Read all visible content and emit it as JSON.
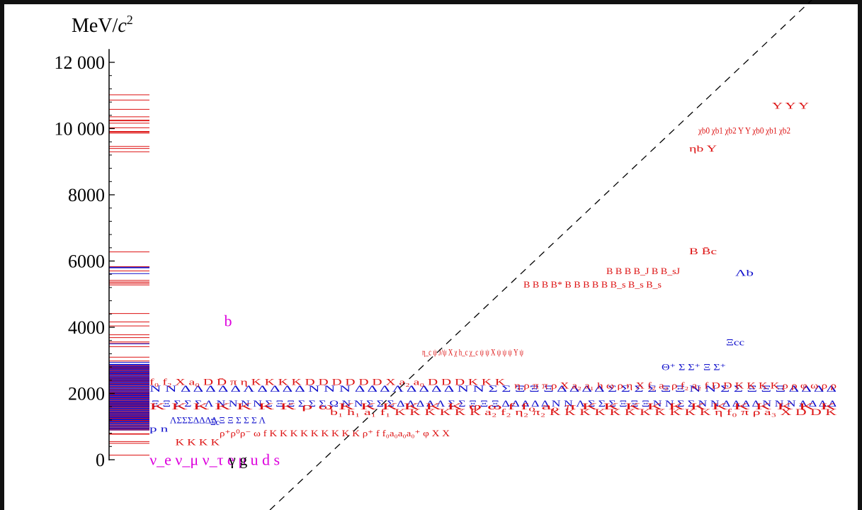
{
  "colors": {
    "meson": "#dd1111",
    "baryon": "#1111cc",
    "quark": "#dd00dd",
    "boson": "#000000",
    "axis": "#000000",
    "diagonal": "#000000"
  },
  "chart_data": {
    "type": "scatter",
    "unit_label": {
      "prefix": "MeV/",
      "symbol": "c",
      "power": "2"
    },
    "y_axis": {
      "range": [
        0,
        12400
      ],
      "ticks": [
        0,
        2000,
        4000,
        6000,
        8000,
        10000,
        12000
      ],
      "tick_labels": [
        "0",
        "2000",
        "4000",
        "6000",
        "8000",
        "10 000",
        "12 000"
      ]
    },
    "x_axis": {
      "range": [
        0,
        75
      ]
    },
    "diagonal_line": {
      "style": "dashed",
      "description": "y = x reference"
    },
    "spectrum_lines": {
      "meson_masses": [
        140,
        495,
        548,
        770,
        783,
        892,
        958,
        1020,
        1170,
        1230,
        1270,
        1285,
        1318,
        1350,
        1410,
        1430,
        1475,
        1525,
        1595,
        1650,
        1680,
        1720,
        1760,
        1865,
        1870,
        1968,
        2010,
        2112,
        2300,
        2420,
        2460,
        2575,
        2980,
        3097,
        3415,
        3511,
        3556,
        3686,
        3773,
        4040,
        4160,
        4415,
        5279,
        5325,
        5366,
        5415,
        5700,
        5830,
        6275,
        9300,
        9399,
        9460,
        9860,
        9893,
        9912,
        10023,
        10164,
        10232,
        10255,
        10355,
        10580,
        10860,
        11020
      ],
      "baryon_masses": [
        938,
        1116,
        1193,
        1232,
        1318,
        1385,
        1405,
        1440,
        1520,
        1535,
        1600,
        1620,
        1650,
        1672,
        1690,
        1700,
        1750,
        1775,
        1820,
        1850,
        1880,
        1915,
        1950,
        2000,
        2030,
        2100,
        2190,
        2250,
        2286,
        2350,
        2420,
        2455,
        2470,
        2520,
        2575,
        2595,
        2625,
        2645,
        2695,
        2765,
        2800,
        2880,
        2940,
        3500,
        5620,
        5810,
        5795
      ]
    },
    "clusters": [
      {
        "group": "meson",
        "label": "K K K K",
        "mass": 540,
        "x": [
          3.2,
          8
        ]
      },
      {
        "group": "meson",
        "label": "ρ⁺ρ⁰ρ⁻ ω f K K K K K K K K K ρ⁺ f f₀a₀a₀a₀⁺ φ X X",
        "mass": 800,
        "x": [
          8,
          33
        ]
      },
      {
        "group": "baryon",
        "label": "p n",
        "mass": 938,
        "x": [
          0.4,
          2.4
        ]
      },
      {
        "group": "baryon",
        "label": "ΛΣΣΣΔΔΔΔ Ξ Ξ Σ Σ Σ Λ",
        "mass": 1200,
        "x": [
          2.6,
          13
        ]
      },
      {
        "group": "baryon",
        "label": "Ξc",
        "mass": 1150,
        "x": [
          7,
          8
        ]
      },
      {
        "group": "baryon",
        "label": "Ξ Ξ Σ Σ Σ Λ N N N N Σ Ξ Ξ Σ Σ Σ Ω N N Σ Σ Σ Δ Δ Δ Δ Λ Σ Σ Ξ Ξ Ξ Δ Δ Δ Δ Δ N N Λ Σ Σ Σ Ξ Ξ Ξ N N Σ Σ N N Δ Δ Δ Δ N N N Δ Δ Δ Δ",
        "mass": 1700,
        "x": [
          0.6,
          75
        ]
      },
      {
        "group": "baryon",
        "label": "N N Δ Δ Δ Δ Δ Λ Δ Δ Δ Δ N N N Δ Δ Δ Λ Δ Δ Δ Δ N N Σ Σ Ξ Ξ Ξ Δ Δ Δ Δ Σ Σ Σ Σ Ξ Ξ N N Σ Σ Ξ Ξ Ξ Δ Δ Δ Δ",
        "mass": 2150,
        "x": [
          0.4,
          75
        ]
      },
      {
        "group": "meson",
        "label": "f₀ f₂ X a₀ D D̄ π η K K K K D D D D D D X a₂ a₀ D D D K K K",
        "mass": 2350,
        "x": [
          0.4,
          39
        ]
      },
      {
        "group": "meson",
        "label": "η ρ π π ρ X a₂ a₁ h ω ρ η X f₂ a₂ ρ f₂ a₂ f D D K K K K ρ ρ φ ω ρ ρ",
        "mass": 2250,
        "x": [
          40,
          75
        ]
      },
      {
        "group": "meson",
        "label": "K K K K K K K ρ ω K K K K K K φ ω f f₀ a₀ π K K K K K K K K K K K K",
        "mass": 1620,
        "x": [
          0.4,
          75
        ]
      },
      {
        "group": "meson",
        "label": "b₁ h₁ a₁ f₁ K K K K K K a₂ f₂ η₂ π₂ K K K K K K K K K K K η f₀ π ρ a₃ X D D K",
        "mass": 1450,
        "x": [
          20,
          75
        ]
      },
      {
        "group": "meson",
        "label": "η_c ψ J/ψ X χ h_c χ_c ψ ψ X ψ ψ ψ Y ψ",
        "mass": 3250,
        "x": [
          30,
          41
        ]
      },
      {
        "group": "meson",
        "label": "B B B B* B B B B B B_s B_s B_s",
        "mass": 5300,
        "x": [
          41,
          56
        ]
      },
      {
        "group": "meson",
        "label": "B B B B_J B B_sJ",
        "mass": 5700,
        "x": [
          50,
          58
        ]
      },
      {
        "group": "meson",
        "label": "B B̄c",
        "mass": 6300,
        "x": [
          59,
          62
        ]
      },
      {
        "group": "baryon",
        "label": "Λb",
        "mass": 5650,
        "x": [
          64,
          66
        ]
      },
      {
        "group": "baryon",
        "label": "Ξcc",
        "mass": 3550,
        "x": [
          63,
          65
        ]
      },
      {
        "group": "baryon",
        "label": "Θ⁺ Σ Σ⁺ Ξ Σ⁺",
        "mass": 2800,
        "x": [
          56,
          63
        ]
      },
      {
        "group": "meson",
        "label": "ηb Y",
        "mass": 9400,
        "x": [
          59,
          62
        ]
      },
      {
        "group": "meson",
        "label": "χb0 χb1 χb2 Y Y χb0 χb1 χb2",
        "mass": 9950,
        "x": [
          60,
          70
        ]
      },
      {
        "group": "meson",
        "label": "Y Y Y",
        "mass": 10700,
        "x": [
          68,
          72
        ]
      }
    ],
    "fundamental": [
      {
        "group": "quark",
        "label": "ν_e ν_μ ν_τ e μ u d s",
        "mass": 0,
        "x": [
          0.4,
          6
        ]
      },
      {
        "group": "boson",
        "label": "γ g",
        "mass": 0,
        "x": [
          9,
          11
        ]
      },
      {
        "group": "quark",
        "label": "b",
        "mass": 4200,
        "x": [
          8.5,
          9.5
        ]
      }
    ]
  }
}
